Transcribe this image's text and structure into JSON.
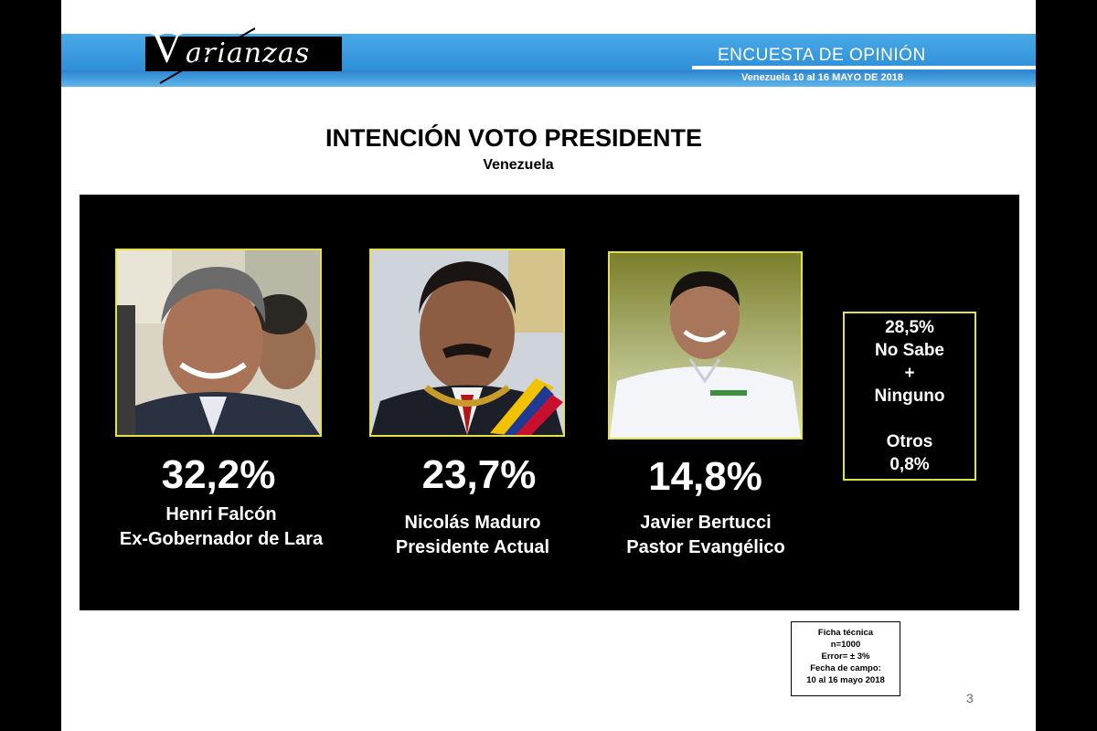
{
  "header": {
    "logo_letter": "V",
    "logo_text": "arianzas",
    "title": "ENCUESTA DE OPINIÓN",
    "subtitle": "Venezuela  10 al 16 MAYO DE 2018",
    "colors": {
      "band": "#2f8fd8",
      "band_light": "#5eb6ea"
    }
  },
  "slide": {
    "title": "INTENCIÓN VOTO PRESIDENTE",
    "subtitle": "Venezuela"
  },
  "candidates": [
    {
      "percent": "32,2%",
      "name": "Henri Falcón",
      "role": "Ex-Gobernador de Lara",
      "photo_icon": "candidate-photo-falcon"
    },
    {
      "percent": "23,7%",
      "name": "Nicolás Maduro",
      "role": "Presidente Actual",
      "photo_icon": "candidate-photo-maduro"
    },
    {
      "percent": "14,8%",
      "name": "Javier Bertucci",
      "role": "Pastor Evangélico",
      "photo_icon": "candidate-photo-bertucci"
    }
  ],
  "others_box": {
    "line1": "28,5%",
    "line2": "No Sabe",
    "line3": "+",
    "line4": "Ninguno",
    "line5": "Otros",
    "line6": "0,8%"
  },
  "ficha": {
    "line1": "Ficha técnica",
    "line2": "n=1000",
    "line3": "Error= ± 3%",
    "line4": "Fecha de campo:",
    "line5": "10 al 16  mayo 2018"
  },
  "page_number": "3",
  "colors": {
    "frame": "#e5e04a",
    "panel": "#000000"
  }
}
